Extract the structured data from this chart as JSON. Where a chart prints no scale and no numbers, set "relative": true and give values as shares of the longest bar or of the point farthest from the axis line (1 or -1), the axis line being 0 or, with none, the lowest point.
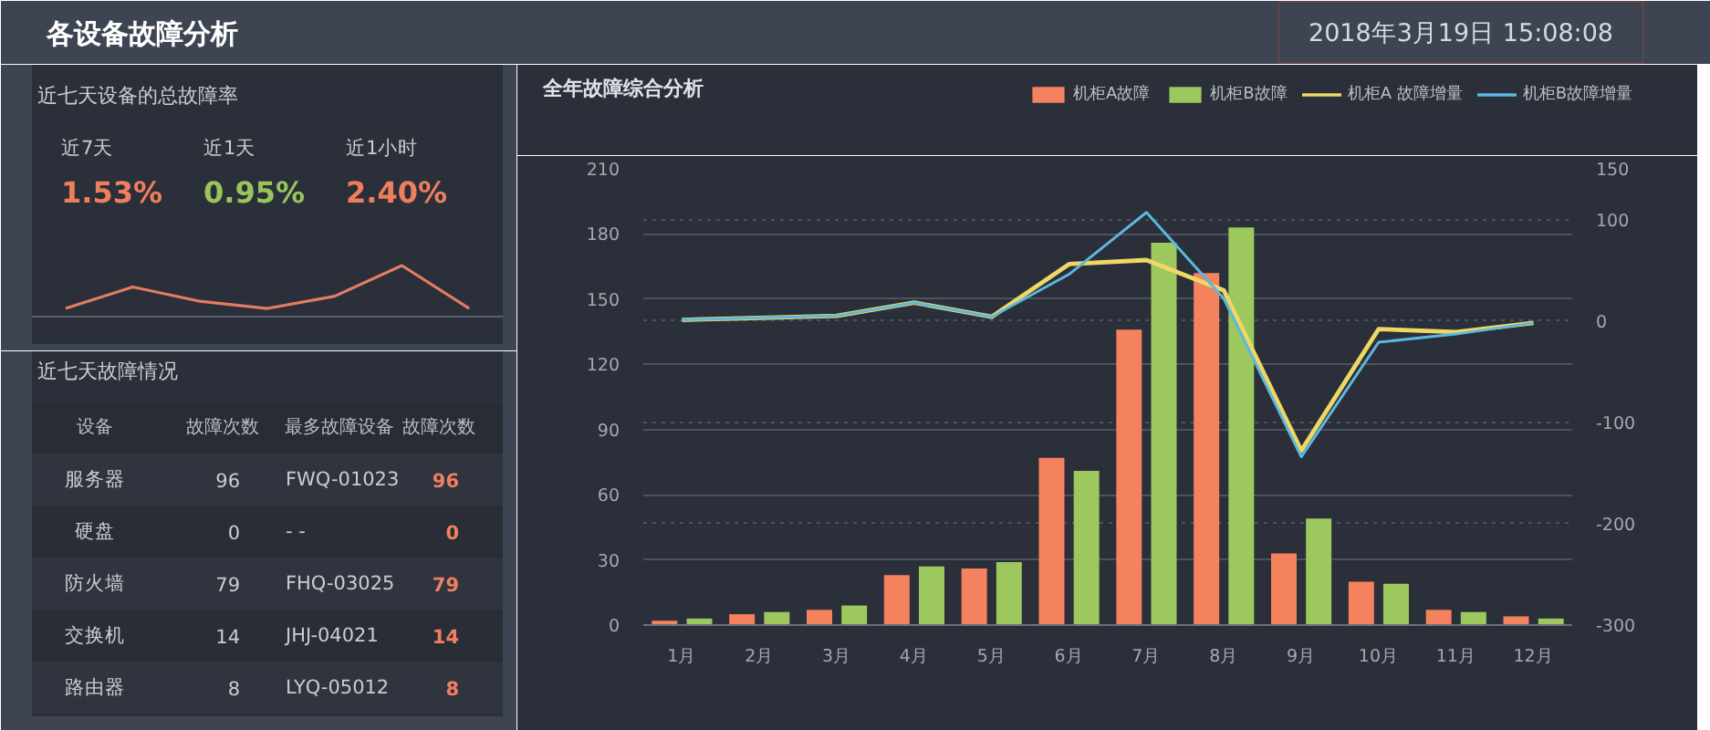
{
  "chart_data": [
    {
      "type": "other",
      "title": "各设备故障分析",
      "annotations": [
        "2018年3月19日 15:08:08"
      ]
    },
    {
      "type": "line",
      "title": "近七天设备的总故障率",
      "relative": true,
      "categories": [
        null,
        null,
        null,
        null,
        null,
        null,
        null
      ],
      "values": [
        0.16,
        0.58,
        0.3,
        0.16,
        0.4,
        1,
        0.16
      ],
      "color": "#e47c64",
      "annotations": [
        "近7天",
        "1.53%",
        "近1天",
        "0.95%",
        "近1小时",
        "2.40%"
      ]
    },
    {
      "type": "other",
      "title": "近七天故障情况",
      "ylabel": "设备",
      "categories": [
        "故障次数",
        "最多故障设备",
        "故障次数"
      ],
      "y_categories": [
        "服务器",
        "硬盘",
        "防火墙",
        "交换机",
        "路由器"
      ],
      "cell_labels": [
        [
          "96",
          "FWQ-01023",
          "96"
        ],
        [
          "0",
          "- -",
          "0"
        ],
        [
          "79",
          "FHQ-03025",
          "79"
        ],
        [
          "14",
          "JHJ-04021",
          "14"
        ],
        [
          "8",
          "LYQ-05012",
          "8"
        ]
      ]
    },
    {
      "type": "bar",
      "title": "全年故障综合分析",
      "categories": [
        "1月",
        "2月",
        "3月",
        "4月",
        "5月",
        "6月",
        "7月",
        "8月",
        "9月",
        "10月",
        "11月",
        "12月"
      ],
      "series": [
        {
          "name": "机柜A故障",
          "type": "bar",
          "color": "#f4825e",
          "values": [
            2,
            5,
            7,
            23,
            26,
            77,
            136,
            162,
            33,
            20,
            7,
            4
          ]
        },
        {
          "name": "机柜B故障",
          "type": "bar",
          "color": "#9cc85d",
          "values": [
            3,
            6,
            9,
            27,
            29,
            71,
            176,
            183,
            49,
            19,
            6,
            3
          ]
        },
        {
          "name": "机柜A 故障增量",
          "type": "line",
          "axis": "y2",
          "color": "#eed764",
          "values": [
            1,
            3,
            5,
            18,
            4,
            56,
            60,
            30,
            -128,
            -8,
            -11,
            -2
          ]
        },
        {
          "name": "机柜B故障增量",
          "type": "line",
          "axis": "y2",
          "color": "#5db7de",
          "values": [
            1,
            3,
            5,
            18,
            4,
            46,
            107,
            22,
            -134,
            -21,
            -13,
            -2
          ]
        }
      ],
      "ylim": [
        0,
        210
      ],
      "yticks": [
        0,
        30,
        60,
        90,
        120,
        150,
        180,
        210
      ],
      "y2lim": [
        -300,
        150
      ],
      "y2ticks": [
        -300,
        -200,
        -100,
        0,
        100,
        150
      ],
      "grid": "y",
      "legend": "top right"
    }
  ]
}
